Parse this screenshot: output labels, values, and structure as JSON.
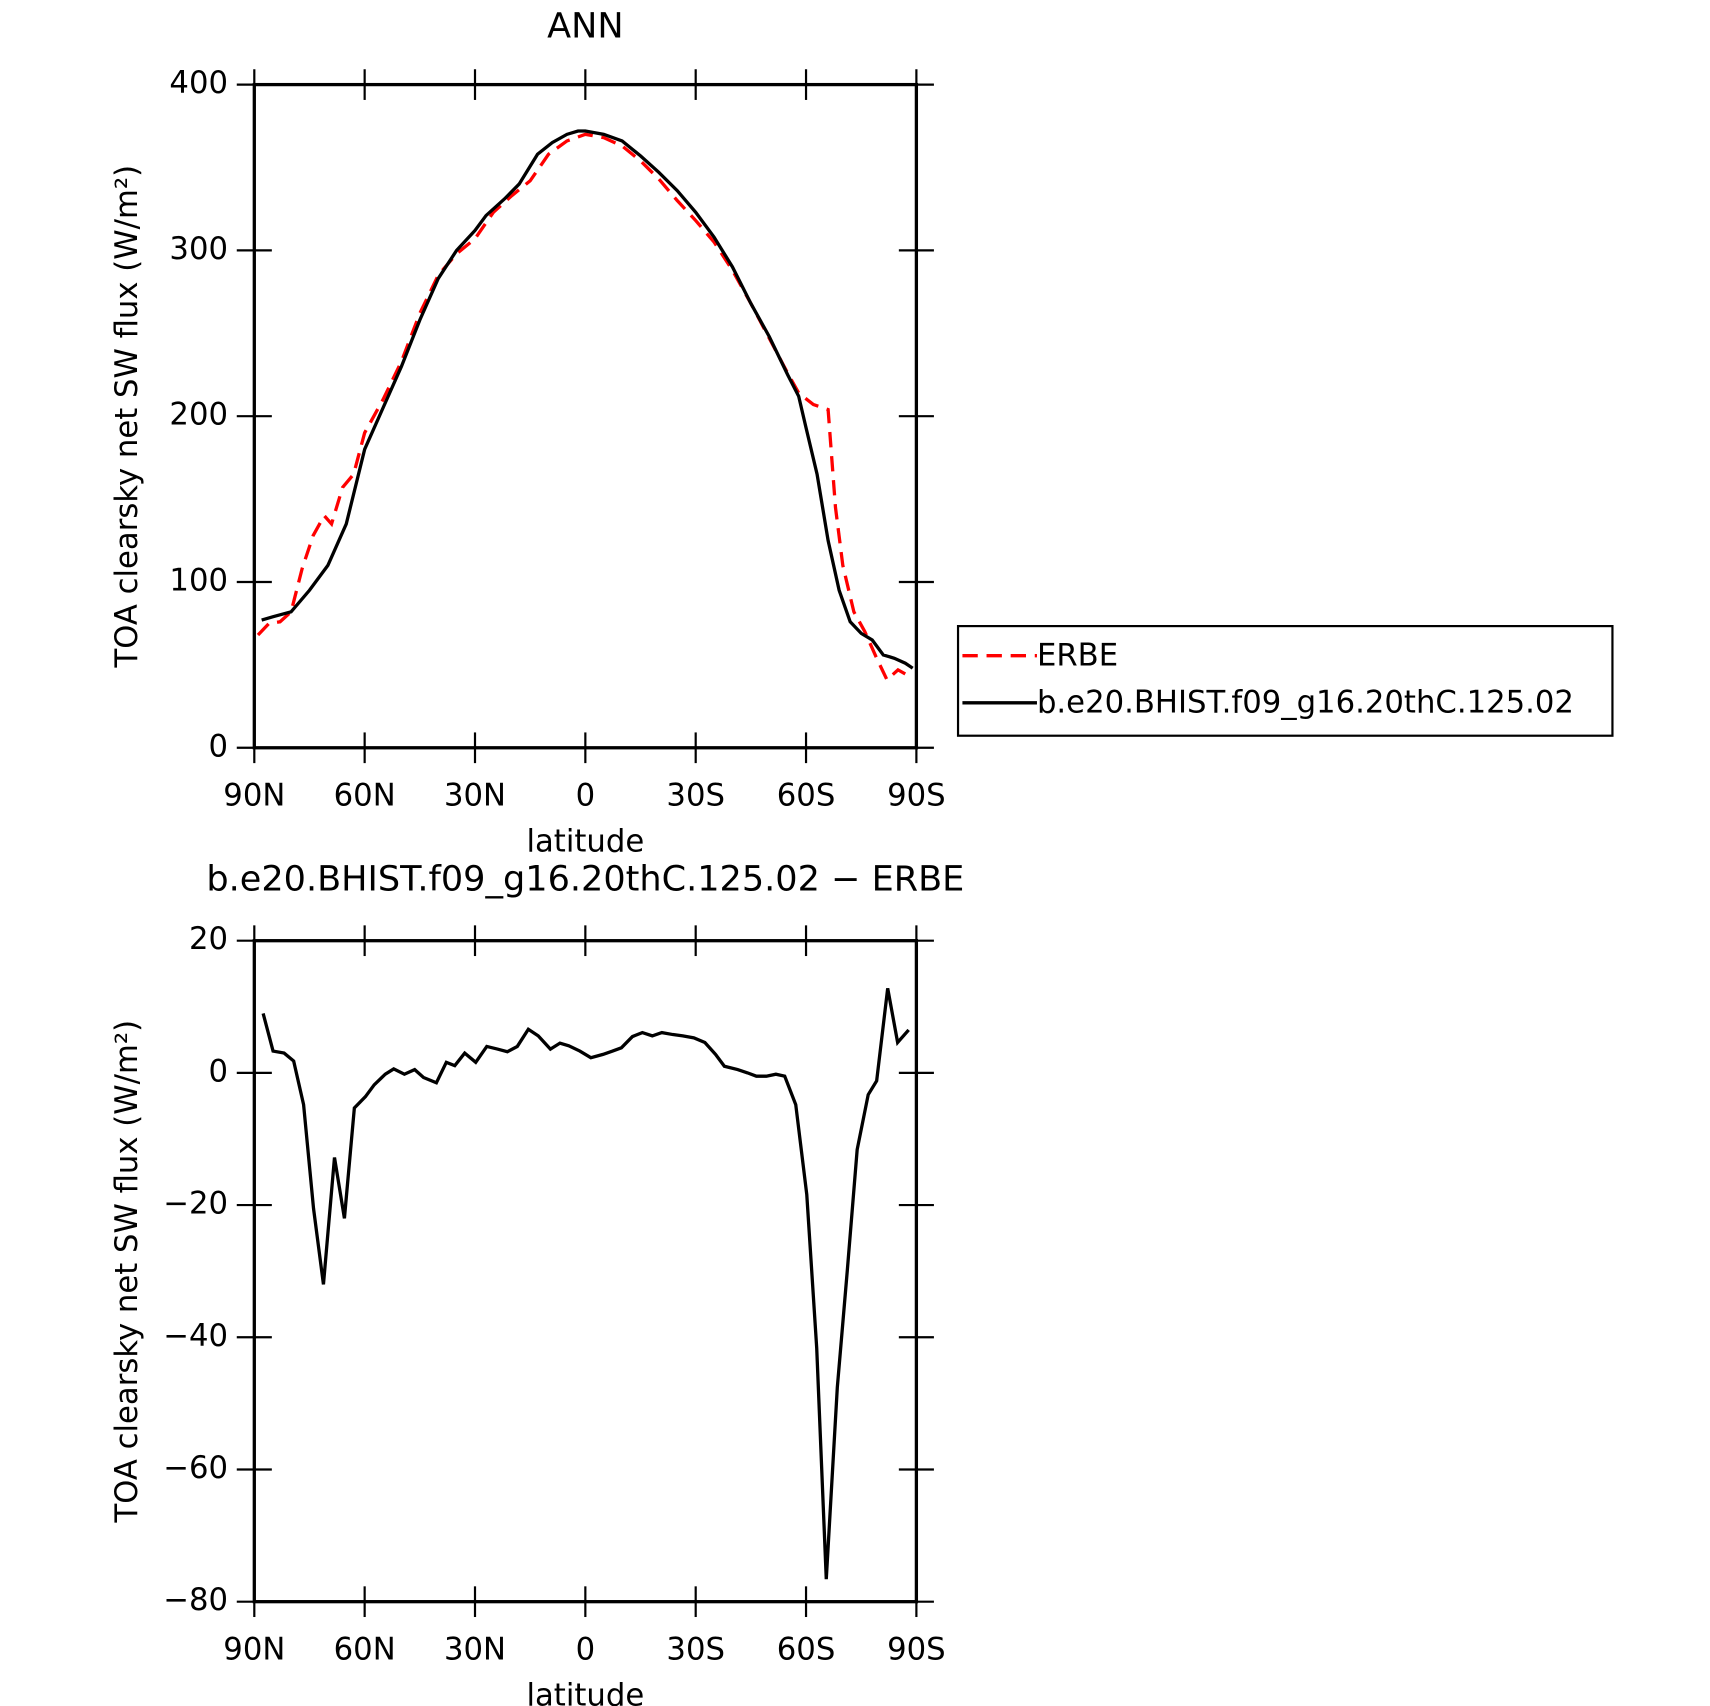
{
  "chart_data": [
    {
      "type": "line",
      "title": "ANN",
      "xlabel": "latitude",
      "ylabel": "TOA clearsky net SW flux (W/m²)",
      "xlim": [
        90,
        -90
      ],
      "xticks": [
        {
          "value": 90,
          "label": "90N"
        },
        {
          "value": 60,
          "label": "60N"
        },
        {
          "value": 30,
          "label": "30N"
        },
        0,
        {
          "value": -30,
          "label": "30S"
        },
        {
          "value": -60,
          "label": "60S"
        },
        {
          "value": -90,
          "label": "90S"
        }
      ],
      "ylim": [
        0,
        400
      ],
      "yticks": [
        0,
        100,
        200,
        300,
        400
      ],
      "legend": "right",
      "series": [
        {
          "name": "ERBE",
          "color": "#ff0000",
          "style": "dashed",
          "x": [
            89,
            86,
            83,
            80,
            77,
            74,
            71,
            69,
            66,
            63,
            60,
            55,
            50,
            45,
            40,
            35,
            30,
            25,
            20,
            15,
            10,
            5,
            0,
            -5,
            -10,
            -15,
            -20,
            -25,
            -30,
            -35,
            -40,
            -45,
            -50,
            -55,
            -58,
            -62,
            -66,
            -68,
            -70,
            -73,
            -76,
            -79,
            -82,
            -85,
            -89
          ],
          "values": [
            68,
            75,
            76,
            82,
            108,
            128,
            140,
            135,
            157,
            165,
            190,
            210,
            233,
            262,
            285,
            298,
            307,
            323,
            333,
            342,
            358,
            366,
            370,
            368,
            363,
            354,
            343,
            330,
            318,
            305,
            288,
            268,
            247,
            226,
            214,
            207,
            204,
            145,
            110,
            82,
            70,
            55,
            41,
            47,
            42
          ]
        },
        {
          "name": "b.e20.BHIST.f09_g16.20thC.125.02",
          "color": "#000000",
          "style": "solid",
          "x": [
            88,
            85,
            80,
            75,
            70,
            65,
            60,
            55,
            50,
            45,
            40,
            35,
            30,
            27,
            22,
            18,
            13,
            9,
            5,
            2,
            0,
            -5,
            -10,
            -15,
            -20,
            -25,
            -30,
            -35,
            -40,
            -45,
            -50,
            -55,
            -58,
            -60,
            -63,
            -66,
            -69,
            -72,
            -75,
            -78,
            -81,
            -84,
            -87,
            -89
          ],
          "values": [
            77,
            79,
            82,
            95,
            110,
            135,
            180,
            205,
            230,
            258,
            283,
            300,
            312,
            321,
            331,
            340,
            358,
            365,
            370,
            372,
            372,
            370,
            366,
            357,
            347,
            336,
            323,
            308,
            290,
            268,
            248,
            225,
            212,
            193,
            165,
            125,
            95,
            76,
            69,
            65,
            56,
            54,
            51,
            48
          ]
        }
      ]
    },
    {
      "type": "line",
      "title": "b.e20.BHIST.f09_g16.20thC.125.02 − ERBE",
      "xlabel": "latitude",
      "ylabel": "TOA clearsky net SW flux (W/m²)",
      "xlim": [
        90,
        -90
      ],
      "xticks": [
        {
          "value": 90,
          "label": "90N"
        },
        {
          "value": 60,
          "label": "60N"
        },
        {
          "value": 30,
          "label": "30N"
        },
        0,
        {
          "value": -30,
          "label": "30S"
        },
        {
          "value": -60,
          "label": "60S"
        },
        {
          "value": -90,
          "label": "90S"
        }
      ],
      "ylim": [
        -80,
        20
      ],
      "yticks": [
        {
          "value": -80,
          "label": "−80"
        },
        {
          "value": -60,
          "label": "−60"
        },
        {
          "value": -40,
          "label": "−40"
        },
        {
          "value": -20,
          "label": "−20"
        },
        0,
        20
      ],
      "series": [
        {
          "color": "#000000",
          "style": "solid",
          "x": [
            87.6,
            84.9,
            81.9,
            79.3,
            76.6,
            73.9,
            71.2,
            68.2,
            65.5,
            62.8,
            59.8,
            57.4,
            54.4,
            52.1,
            49.2,
            46.4,
            44.0,
            40.5,
            37.8,
            35.5,
            32.8,
            29.8,
            26.8,
            23.9,
            21.2,
            18.5,
            15.5,
            12.8,
            9.5,
            6.9,
            4.5,
            1.5,
            -1.5,
            -4.8,
            -7.4,
            -9.8,
            -12.8,
            -15.5,
            -18.2,
            -20.8,
            -23.8,
            -26.5,
            -29.5,
            -32.5,
            -35.4,
            -37.8,
            -41.4,
            -44.1,
            -46.5,
            -49.2,
            -51.8,
            -54.2,
            -57.2,
            -60.2,
            -62.9,
            -65.5,
            -68.5,
            -71.2,
            -73.9,
            -76.9,
            -79.2,
            -82.2,
            -84.9,
            -87.9
          ],
          "values": [
            9,
            3.3,
            3,
            1.8,
            -4.8,
            -20.5,
            -32,
            -12.8,
            -22,
            -5.3,
            -3.6,
            -1.8,
            -0.2,
            0.6,
            -0.2,
            0.5,
            -0.7,
            -1.5,
            1.6,
            1.1,
            3,
            1.6,
            4,
            3.6,
            3.2,
            4,
            6.6,
            5.6,
            3.6,
            4.5,
            4.1,
            3.3,
            2.3,
            2.8,
            3.3,
            3.8,
            5.5,
            6.1,
            5.6,
            6.1,
            5.8,
            5.6,
            5.3,
            4.6,
            2.8,
            1,
            0.5,
            0,
            -0.5,
            -0.5,
            -0.2,
            -0.5,
            -4.8,
            -18.4,
            -41.6,
            -76.6,
            -47.6,
            -30,
            -11.6,
            -3.3,
            -1.2,
            12.8,
            4.6,
            6.5
          ]
        }
      ]
    }
  ]
}
